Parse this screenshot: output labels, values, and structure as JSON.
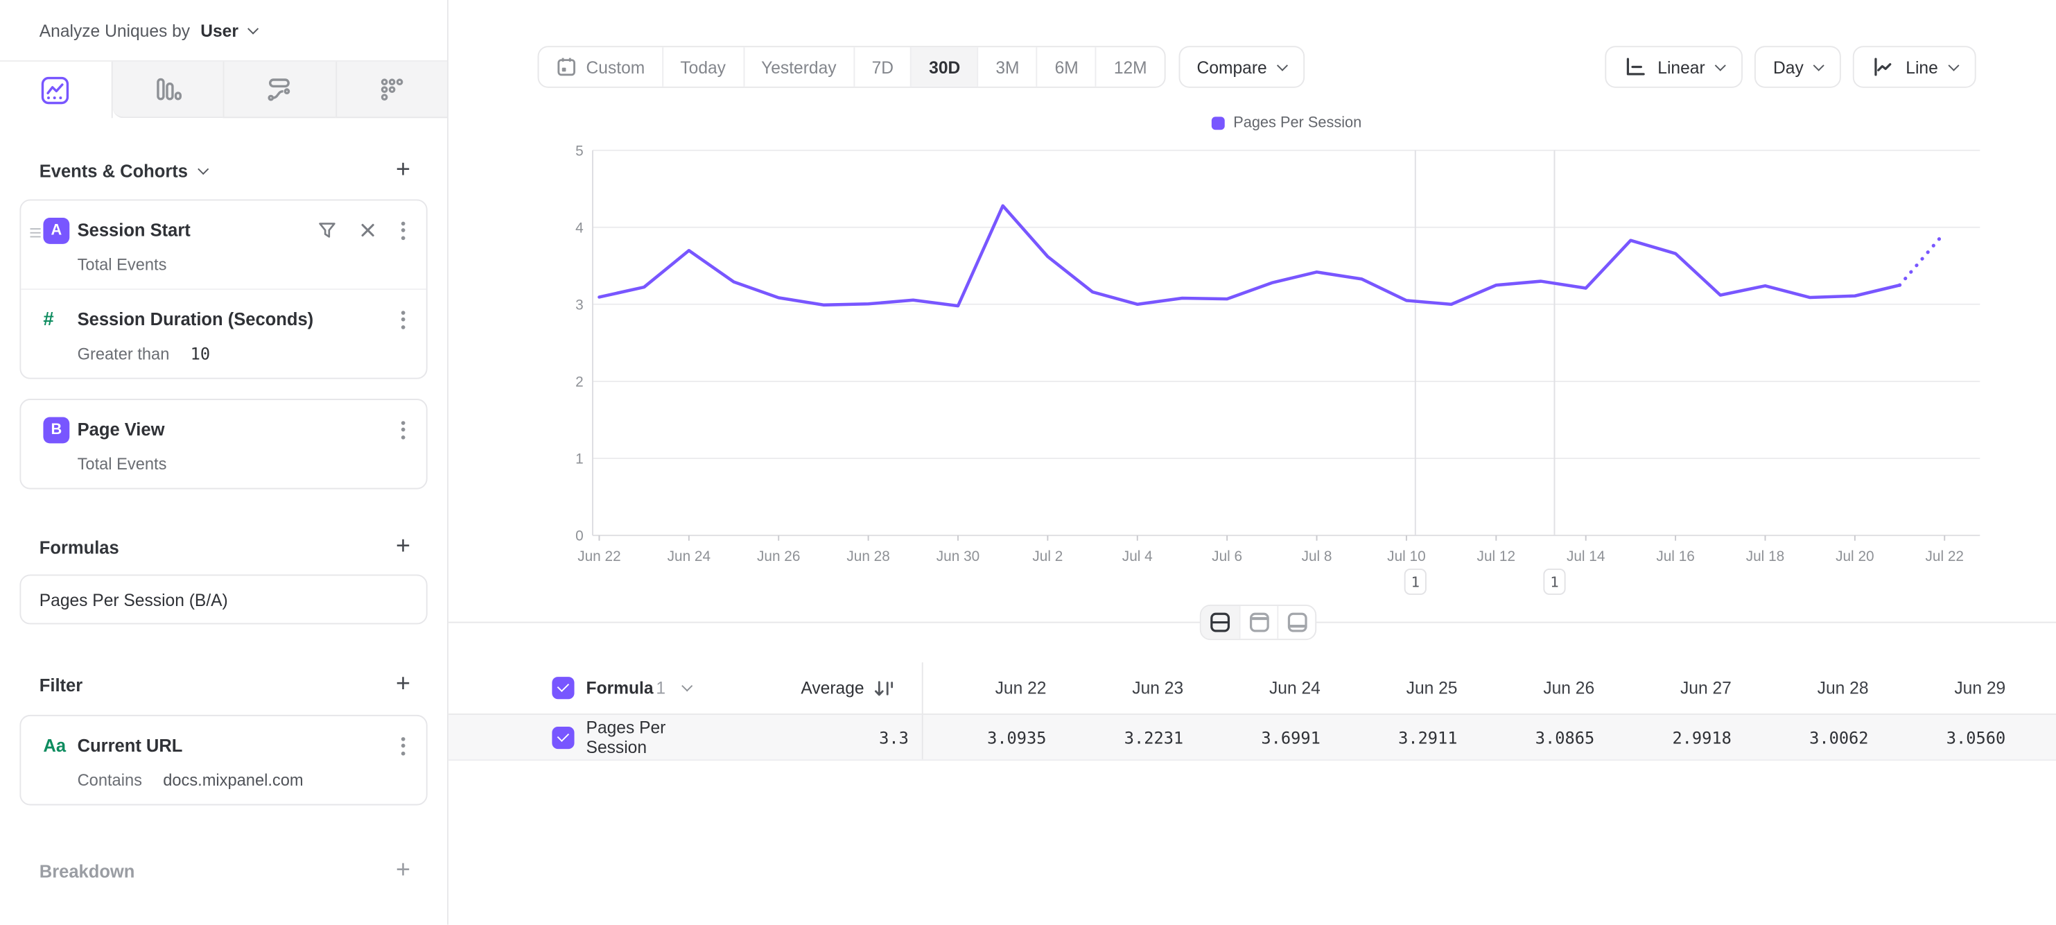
{
  "header": {
    "analyze_label": "Analyze Uniques by",
    "analyze_value": "User"
  },
  "sidebar": {
    "tabs": [
      {
        "name": "insights",
        "active": true
      },
      {
        "name": "funnels",
        "active": false
      },
      {
        "name": "flows",
        "active": false
      },
      {
        "name": "retention",
        "active": false
      }
    ],
    "events_section": {
      "title": "Events & Cohorts",
      "items": [
        {
          "badge": "A",
          "title": "Session Start",
          "subtitle": "Total Events"
        },
        {
          "icon": "number-property",
          "title": "Session Duration (Seconds)",
          "operator": "Greater than",
          "value": "10"
        },
        {
          "badge": "B",
          "title": "Page View",
          "subtitle": "Total Events"
        }
      ]
    },
    "formulas_section": {
      "title": "Formulas",
      "items": [
        {
          "title": "Pages Per Session (B/A)"
        }
      ]
    },
    "filter_section": {
      "title": "Filter",
      "items": [
        {
          "icon": "text-property",
          "title": "Current URL",
          "operator": "Contains",
          "value": "docs.mixpanel.com"
        }
      ]
    },
    "breakdown_section": {
      "title": "Breakdown"
    }
  },
  "toolbar": {
    "date_ranges": [
      "Custom",
      "Today",
      "Yesterday",
      "7D",
      "30D",
      "3M",
      "6M",
      "12M"
    ],
    "selected_range": "30D",
    "compare_label": "Compare",
    "scale_label": "Linear",
    "interval_label": "Day",
    "chart_type_label": "Line"
  },
  "chart_data": {
    "type": "line",
    "series": [
      {
        "name": "Pages Per Session",
        "color": "#7856ff"
      }
    ],
    "x_labels": [
      "Jun 22",
      "Jun 23",
      "Jun 24",
      "Jun 25",
      "Jun 26",
      "Jun 27",
      "Jun 28",
      "Jun 29",
      "Jun 30",
      "Jul 1",
      "Jul 2",
      "Jul 3",
      "Jul 4",
      "Jul 5",
      "Jul 6",
      "Jul 7",
      "Jul 8",
      "Jul 9",
      "Jul 10",
      "Jul 11",
      "Jul 12",
      "Jul 13",
      "Jul 14",
      "Jul 15",
      "Jul 16",
      "Jul 17",
      "Jul 18",
      "Jul 19",
      "Jul 20",
      "Jul 21",
      "Jul 22"
    ],
    "x_tick_label_every": 2,
    "values": [
      3.0935,
      3.2231,
      3.6991,
      3.2911,
      3.0865,
      2.9918,
      3.0062,
      3.056,
      2.98,
      4.28,
      3.62,
      3.16,
      3.0,
      3.08,
      3.07,
      3.28,
      3.42,
      3.33,
      3.05,
      3.0,
      3.25,
      3.3,
      3.21,
      3.83,
      3.66,
      3.12,
      3.24,
      3.09,
      3.11,
      3.25,
      3.93
    ],
    "last_point_projected": true,
    "ylim": [
      0,
      5
    ],
    "yticks": [
      0,
      1,
      2,
      3,
      4,
      5
    ],
    "grid": "horizontal",
    "legend_position": "top-center",
    "annotations": [
      {
        "x_index": 18.2,
        "label": "1"
      },
      {
        "x_index": 21.3,
        "label": "1"
      }
    ]
  },
  "table": {
    "series_group_label": "Formula",
    "series_group_number": "1",
    "avg_header": "Average",
    "columns": [
      "Jun 22",
      "Jun 23",
      "Jun 24",
      "Jun 25",
      "Jun 26",
      "Jun 27",
      "Jun 28",
      "Jun 29"
    ],
    "rows": [
      {
        "name": "Pages Per Session",
        "average": "3.3",
        "values": [
          "3.0935",
          "3.2231",
          "3.6991",
          "3.2911",
          "3.0865",
          "2.9918",
          "3.0062",
          "3.0560"
        ]
      }
    ]
  }
}
